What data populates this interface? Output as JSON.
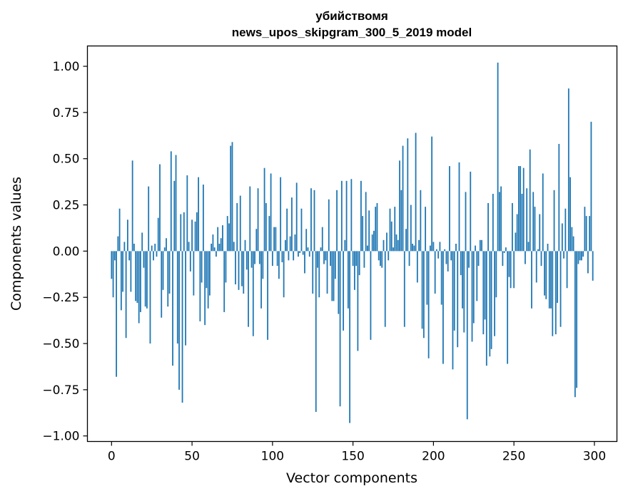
{
  "chart_data": {
    "type": "bar",
    "title": "убийствомя",
    "subtitle": "news_upos_skipgram_300_5_2019 model",
    "xlabel": "Vector components",
    "ylabel": "Components values",
    "xlim": [
      -15,
      314
    ],
    "ylim": [
      -1.03,
      1.11
    ],
    "xticks": [
      0,
      50,
      100,
      150,
      200,
      250,
      300
    ],
    "xtick_labels": [
      "0",
      "50",
      "100",
      "150",
      "200",
      "250",
      "300"
    ],
    "yticks": [
      1.0,
      0.75,
      0.5,
      0.25,
      0.0,
      -0.25,
      -0.5,
      -0.75,
      -1.0
    ],
    "ytick_labels": [
      "1.00",
      "0.75",
      "0.50",
      "0.25",
      "0.00",
      "−0.25",
      "−0.50",
      "−0.75",
      "−1.00"
    ],
    "grid": false,
    "bar_color": "#1f77b4",
    "x": "0..299 (component index)",
    "values": [
      -0.15,
      -0.25,
      -0.05,
      -0.68,
      0.08,
      0.23,
      -0.32,
      -0.22,
      0.05,
      -0.47,
      0.17,
      -0.05,
      -0.22,
      0.49,
      0.04,
      -0.27,
      -0.28,
      -0.39,
      -0.33,
      0.1,
      -0.09,
      -0.3,
      -0.31,
      0.35,
      -0.5,
      0.03,
      -0.05,
      0.04,
      -0.03,
      0.18,
      0.47,
      -0.36,
      -0.21,
      0.02,
      0.07,
      -0.3,
      -0.23,
      0.54,
      -0.62,
      0.38,
      0.52,
      -0.5,
      -0.75,
      0.2,
      -0.82,
      0.21,
      -0.51,
      0.41,
      0.05,
      -0.11,
      0.17,
      -0.24,
      0.16,
      0.21,
      0.4,
      -0.38,
      -0.17,
      0.36,
      -0.4,
      -0.2,
      -0.31,
      -0.24,
      0.04,
      0.09,
      0.02,
      -0.03,
      0.13,
      0.04,
      0.07,
      0.14,
      -0.33,
      -0.17,
      0.19,
      0.15,
      0.57,
      0.59,
      0.05,
      -0.18,
      0.26,
      -0.21,
      0.3,
      -0.19,
      -0.23,
      0.06,
      -0.1,
      -0.41,
      0.35,
      -0.09,
      -0.46,
      -0.07,
      0.12,
      0.34,
      -0.07,
      -0.31,
      -0.15,
      0.45,
      0.26,
      -0.48,
      0.19,
      0.42,
      -0.08,
      0.13,
      0.13,
      -0.08,
      -0.15,
      0.4,
      -0.06,
      -0.25,
      0.06,
      0.23,
      -0.05,
      0.08,
      0.29,
      -0.05,
      0.09,
      0.37,
      -0.03,
      -0.01,
      0.23,
      -0.02,
      -0.12,
      0.12,
      0.02,
      -0.03,
      0.34,
      -0.23,
      0.33,
      -0.87,
      -0.09,
      -0.25,
      0.02,
      0.13,
      -0.07,
      -0.05,
      -0.23,
      0.28,
      -0.08,
      -0.27,
      -0.27,
      -0.15,
      0.33,
      -0.34,
      -0.84,
      0.38,
      -0.43,
      0.06,
      0.38,
      -0.31,
      -0.93,
      0.39,
      -0.08,
      -0.21,
      -0.08,
      -0.54,
      -0.13,
      0.38,
      0.19,
      -0.09,
      0.32,
      0.03,
      0.22,
      -0.48,
      0.09,
      0.11,
      0.24,
      0.26,
      -0.05,
      -0.08,
      -0.09,
      0.06,
      -0.41,
      0.1,
      -0.05,
      0.23,
      0.16,
      0.02,
      0.24,
      0.09,
      0.06,
      0.49,
      0.33,
      0.57,
      -0.41,
      0.12,
      0.61,
      -0.08,
      0.25,
      0.04,
      0.03,
      0.64,
      -0.17,
      0.06,
      0.33,
      -0.42,
      -0.47,
      0.24,
      -0.29,
      -0.58,
      0.03,
      0.62,
      0.05,
      -0.23,
      0.01,
      -0.04,
      0.05,
      -0.29,
      -0.61,
      0.01,
      -0.07,
      -0.11,
      0.46,
      -0.05,
      -0.64,
      -0.43,
      0.04,
      -0.52,
      0.48,
      -0.13,
      -0.31,
      -0.44,
      0.32,
      -0.91,
      -0.09,
      0.43,
      -0.49,
      -0.39,
      0.03,
      -0.27,
      -0.08,
      0.06,
      0.06,
      -0.45,
      -0.37,
      -0.62,
      0.26,
      -0.57,
      -0.53,
      0.31,
      -0.46,
      -0.25,
      1.02,
      0.32,
      0.35,
      -0.08,
      -0.01,
      0.02,
      -0.61,
      -0.14,
      -0.2,
      0.26,
      -0.2,
      0.1,
      0.2,
      0.46,
      0.46,
      0.31,
      0.45,
      -0.07,
      0.34,
      0.05,
      0.55,
      -0.31,
      0.32,
      0.24,
      -0.17,
      0.01,
      0.2,
      -0.08,
      0.42,
      -0.24,
      -0.26,
      0.04,
      -0.31,
      -0.31,
      -0.46,
      0.33,
      -0.45,
      -0.28,
      0.58,
      -0.41,
      0.15,
      -0.04,
      0.23,
      -0.2,
      0.88,
      0.4,
      0.13,
      0.08,
      -0.79,
      -0.74,
      -0.07,
      -0.05,
      -0.05,
      -0.03,
      0.24,
      0.19,
      -0.12,
      0.19,
      0.7,
      -0.16
    ]
  }
}
